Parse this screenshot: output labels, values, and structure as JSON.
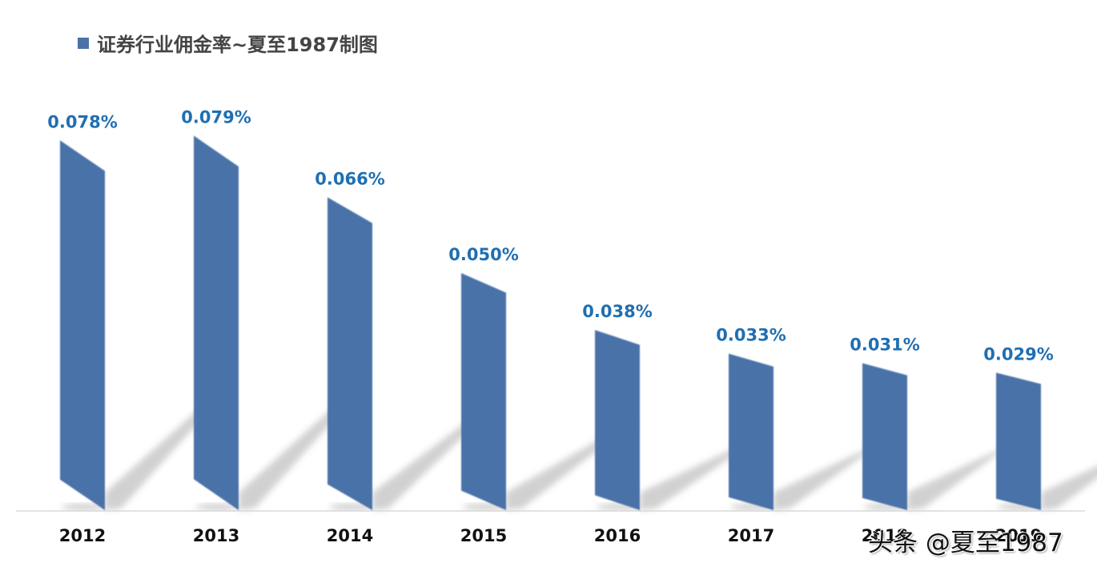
{
  "legend": {
    "label": "证券行业佣金率~夏至1987制图",
    "swatch_color": "#4a72a8"
  },
  "watermark": "头条 @夏至1987",
  "colors": {
    "bar": "#4a72a8",
    "data_label": "#1f6fb2",
    "tick_label": "#111111",
    "axis": "#d9d9d9",
    "shadow": "#cfcfcf"
  },
  "chart_data": {
    "type": "bar",
    "title": "证券行业佣金率~夏至1987制图",
    "xlabel": "",
    "ylabel": "",
    "categories": [
      "2012",
      "2013",
      "2014",
      "2015",
      "2016",
      "2017",
      "2018",
      "2019"
    ],
    "series": [
      {
        "name": "证券行业佣金率~夏至1987制图",
        "values": [
          0.078,
          0.079,
          0.066,
          0.05,
          0.038,
          0.033,
          0.031,
          0.029
        ],
        "labels": [
          "0.078%",
          "0.079%",
          "0.066%",
          "0.050%",
          "0.038%",
          "0.033%",
          "0.031%",
          "0.029%"
        ],
        "unit": "%"
      }
    ],
    "ylim": [
      0,
      0.085
    ],
    "grid": false,
    "legend_position": "top-left",
    "style": "3d-perspective parallelogram bars with drop shadows"
  }
}
